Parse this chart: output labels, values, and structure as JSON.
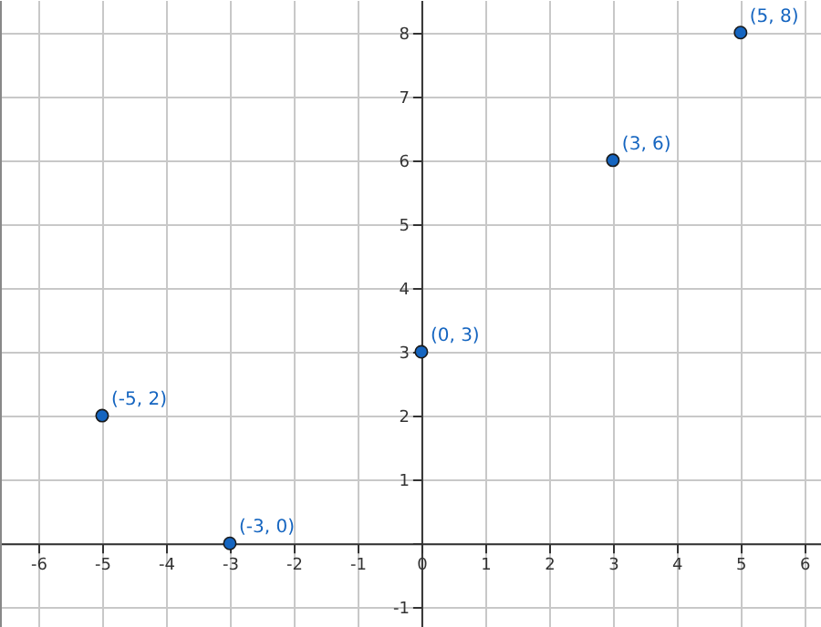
{
  "chart_data": {
    "type": "scatter",
    "x": [
      -5,
      -3,
      0,
      3,
      5
    ],
    "series": [
      {
        "color": "#1565c0",
        "values": [
          2,
          0,
          3,
          6,
          8
        ]
      }
    ],
    "marker": "circle",
    "grid": true,
    "xlim": [
      -6.6,
      6.26
    ],
    "ylim": [
      -1.31,
      8.51
    ],
    "xticks": [
      -6,
      -5,
      -4,
      -3,
      -2,
      -1,
      0,
      1,
      2,
      3,
      4,
      5,
      6
    ],
    "yticks": [
      -1,
      {
        "value": 0,
        "label": null
      },
      1,
      2,
      3,
      4,
      5,
      6,
      7,
      8
    ],
    "annotations": [
      {
        "text": "(-5, 2)",
        "x": -5,
        "y": 2
      },
      {
        "text": "(-3, 0)",
        "x": -3,
        "y": 0
      },
      {
        "text": "(0, 3)",
        "x": 0,
        "y": 3
      },
      {
        "text": "(3, 6)",
        "x": 3,
        "y": 6
      },
      {
        "text": "(5, 8)",
        "x": 5,
        "y": 8
      }
    ]
  }
}
